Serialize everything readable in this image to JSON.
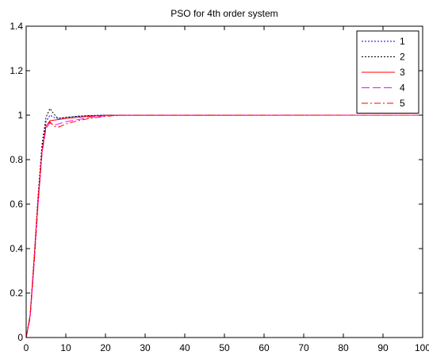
{
  "chart_data": {
    "type": "line",
    "title": "PSO for 4th order system",
    "xlabel": "",
    "ylabel": "",
    "xlim": [
      0,
      100
    ],
    "ylim": [
      0,
      1.4
    ],
    "xticks": [
      0,
      10,
      20,
      30,
      40,
      50,
      60,
      70,
      80,
      90,
      100
    ],
    "yticks": [
      0,
      0.2,
      0.4,
      0.6,
      0.8,
      1,
      1.2,
      1.4
    ],
    "ytick_labels": [
      "0",
      "0.2",
      "0.4",
      "0.6",
      "0.8",
      "1",
      "1.2",
      "1.4"
    ],
    "grid": false,
    "legend": {
      "position": "top-right"
    },
    "series": [
      {
        "name": "1",
        "color": "#0000ff",
        "dash": "2,2",
        "points": [
          [
            0,
            0
          ],
          [
            1,
            0.1
          ],
          [
            2,
            0.35
          ],
          [
            3,
            0.62
          ],
          [
            4,
            0.85
          ],
          [
            5,
            0.97
          ],
          [
            6,
            1.0
          ],
          [
            7,
            0.99
          ],
          [
            8,
            0.985
          ],
          [
            10,
            0.99
          ],
          [
            13,
            0.995
          ],
          [
            16,
            0.998
          ],
          [
            20,
            1.0
          ],
          [
            100,
            1.0
          ]
        ]
      },
      {
        "name": "2",
        "color": "#000000",
        "dash": "2,2",
        "points": [
          [
            0,
            0
          ],
          [
            1,
            0.1
          ],
          [
            2,
            0.36
          ],
          [
            3,
            0.64
          ],
          [
            4,
            0.87
          ],
          [
            5,
            0.99
          ],
          [
            6,
            1.03
          ],
          [
            6.8,
            1.01
          ],
          [
            8,
            0.985
          ],
          [
            10,
            0.99
          ],
          [
            13,
            0.995
          ],
          [
            16,
            0.998
          ],
          [
            20,
            1.0
          ],
          [
            100,
            1.0
          ]
        ]
      },
      {
        "name": "3",
        "color": "#ff0000",
        "dash": "",
        "points": [
          [
            0,
            0
          ],
          [
            1,
            0.1
          ],
          [
            2,
            0.35
          ],
          [
            3,
            0.62
          ],
          [
            4,
            0.84
          ],
          [
            5,
            0.95
          ],
          [
            6,
            0.975
          ],
          [
            8,
            0.98
          ],
          [
            10,
            0.985
          ],
          [
            13,
            0.99
          ],
          [
            16,
            0.995
          ],
          [
            20,
            0.999
          ],
          [
            100,
            1.0
          ]
        ]
      },
      {
        "name": "4",
        "color": "#ff00ff",
        "dash": "10,4",
        "points": [
          [
            0,
            0
          ],
          [
            1,
            0.09
          ],
          [
            2,
            0.33
          ],
          [
            3,
            0.6
          ],
          [
            4,
            0.83
          ],
          [
            5,
            0.94
          ],
          [
            6,
            0.965
          ],
          [
            7,
            0.955
          ],
          [
            8,
            0.96
          ],
          [
            10,
            0.97
          ],
          [
            13,
            0.98
          ],
          [
            16,
            0.99
          ],
          [
            20,
            0.997
          ],
          [
            24,
            1.0
          ],
          [
            100,
            1.0
          ]
        ]
      },
      {
        "name": "5",
        "color": "#ff0000",
        "dash": "8,3,2,3",
        "points": [
          [
            0,
            0
          ],
          [
            1,
            0.09
          ],
          [
            2,
            0.33
          ],
          [
            3,
            0.6
          ],
          [
            4,
            0.83
          ],
          [
            5,
            0.95
          ],
          [
            6,
            0.97
          ],
          [
            7,
            0.95
          ],
          [
            8,
            0.945
          ],
          [
            10,
            0.96
          ],
          [
            13,
            0.975
          ],
          [
            16,
            0.985
          ],
          [
            20,
            0.995
          ],
          [
            24,
            1.0
          ],
          [
            100,
            1.0
          ]
        ]
      }
    ]
  }
}
